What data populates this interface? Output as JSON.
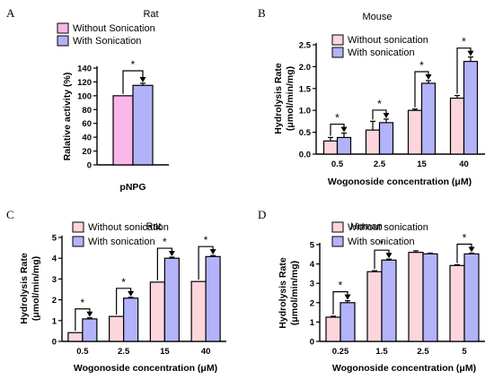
{
  "colors": {
    "without": "#fcd6dc",
    "with": "#b3b3fa",
    "without_a": "#f8b7e8",
    "with_a": "#b2b2f8",
    "edge": "#000000"
  },
  "chart_data": [
    {
      "panel": "A",
      "type": "bar",
      "title": "Rat",
      "xlabel": "pNPG",
      "ylabel": "Ralative activity (%)",
      "ylim": [
        0,
        140
      ],
      "yticks": [
        0,
        20,
        40,
        60,
        80,
        100,
        120,
        140
      ],
      "categories": [
        ""
      ],
      "series": [
        {
          "name": "Without Sonication",
          "values": [
            100
          ],
          "errors": [
            0
          ]
        },
        {
          "name": "With Sonication",
          "values": [
            115
          ],
          "errors": [
            3
          ]
        }
      ],
      "significance": [
        {
          "category": 0,
          "label": "*"
        }
      ],
      "legend": "top"
    },
    {
      "panel": "B",
      "type": "bar",
      "title": "Mouse",
      "xlabel": "Wogonoside concentration (μM)",
      "ylabel": "Hydrolysis Rate (μmol/min/mg)",
      "ylim": [
        0,
        2.5
      ],
      "yticks": [
        0.0,
        0.5,
        1.0,
        1.5,
        2.0,
        2.5
      ],
      "categories": [
        "0.5",
        "2.5",
        "15",
        "40"
      ],
      "series": [
        {
          "name": "Without sonication",
          "values": [
            0.3,
            0.55,
            1.0,
            1.28
          ],
          "errors": [
            0.08,
            0.2,
            0.03,
            0.06
          ]
        },
        {
          "name": "With sonication",
          "values": [
            0.38,
            0.72,
            1.62,
            2.12
          ],
          "errors": [
            0.1,
            0.08,
            0.06,
            0.1
          ]
        }
      ],
      "significance": [
        {
          "category": 0,
          "label": "*"
        },
        {
          "category": 1,
          "label": "*"
        },
        {
          "category": 2,
          "label": "*"
        },
        {
          "category": 3,
          "label": "*"
        }
      ],
      "legend": "top-left"
    },
    {
      "panel": "C",
      "type": "bar",
      "title": "Rat",
      "xlabel": "Wogonoside concentration (μM)",
      "ylabel": "Hydrolysis Rate (μmol/min/mg)",
      "ylim": [
        0,
        5
      ],
      "yticks": [
        0,
        1,
        2,
        3,
        4,
        5
      ],
      "categories": [
        "0.5",
        "2.5",
        "15",
        "40"
      ],
      "series": [
        {
          "name": "Without sonication",
          "values": [
            0.42,
            1.2,
            2.85,
            2.88
          ],
          "errors": [
            0,
            0,
            0,
            0
          ]
        },
        {
          "name": "With sonication",
          "values": [
            1.08,
            2.08,
            4.0,
            4.08
          ],
          "errors": [
            0.05,
            0.04,
            0.05,
            0.05
          ]
        }
      ],
      "significance": [
        {
          "category": 0,
          "label": "*"
        },
        {
          "category": 1,
          "label": "*"
        },
        {
          "category": 2,
          "label": "*"
        },
        {
          "category": 3,
          "label": "*"
        }
      ],
      "legend": "top-left"
    },
    {
      "panel": "D",
      "type": "bar",
      "title": "Human",
      "xlabel": "Wogonoside concentration (μM)",
      "ylabel": "Hydrolysis Rate (μmol/min/mg)",
      "ylim": [
        0,
        5
      ],
      "yticks": [
        0,
        1,
        2,
        3,
        4,
        5
      ],
      "categories": [
        "0.25",
        "1.5",
        "2.5",
        "5"
      ],
      "series": [
        {
          "name": "Without sonication",
          "values": [
            1.25,
            3.6,
            4.6,
            3.92
          ],
          "errors": [
            0.05,
            0.05,
            0.08,
            0.04
          ]
        },
        {
          "name": "With sonication",
          "values": [
            2.0,
            4.2,
            4.52,
            4.52
          ],
          "errors": [
            0.1,
            0.05,
            0.04,
            0.04
          ]
        }
      ],
      "significance": [
        {
          "category": 0,
          "label": "*"
        },
        {
          "category": 1,
          "label": "*"
        },
        {
          "category": 3,
          "label": "*"
        }
      ],
      "legend": "top-left"
    }
  ]
}
